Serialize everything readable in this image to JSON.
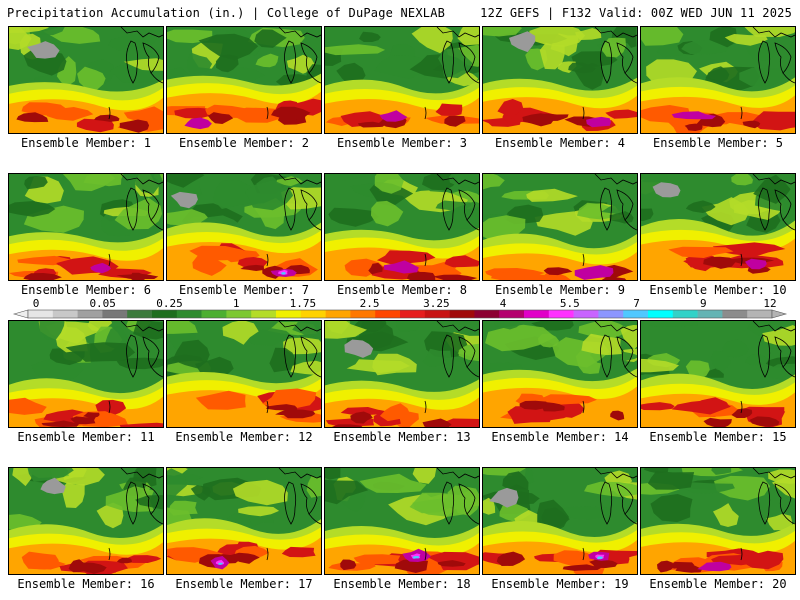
{
  "header": {
    "title_left": "Precipitation Accumulation (in.) | College of DuPage NEXLAB",
    "title_right": "12Z GEFS | F132 Valid: 00Z WED JUN 11 2025"
  },
  "members": [
    {
      "label": "Ensemble Member: 1",
      "seed": 1
    },
    {
      "label": "Ensemble Member: 2",
      "seed": 2
    },
    {
      "label": "Ensemble Member: 3",
      "seed": 3
    },
    {
      "label": "Ensemble Member: 4",
      "seed": 4
    },
    {
      "label": "Ensemble Member: 5",
      "seed": 5
    },
    {
      "label": "Ensemble Member: 6",
      "seed": 6
    },
    {
      "label": "Ensemble Member: 7",
      "seed": 7
    },
    {
      "label": "Ensemble Member: 8",
      "seed": 8
    },
    {
      "label": "Ensemble Member: 9",
      "seed": 9
    },
    {
      "label": "Ensemble Member: 10",
      "seed": 10
    },
    {
      "label": "Ensemble Member: 11",
      "seed": 11
    },
    {
      "label": "Ensemble Member: 12",
      "seed": 12
    },
    {
      "label": "Ensemble Member: 13",
      "seed": 13
    },
    {
      "label": "Ensemble Member: 14",
      "seed": 14
    },
    {
      "label": "Ensemble Member: 15",
      "seed": 15
    },
    {
      "label": "Ensemble Member: 16",
      "seed": 16
    },
    {
      "label": "Ensemble Member: 17",
      "seed": 17
    },
    {
      "label": "Ensemble Member: 18",
      "seed": 18
    },
    {
      "label": "Ensemble Member: 19",
      "seed": 19
    },
    {
      "label": "Ensemble Member: 20",
      "seed": 20
    }
  ],
  "legend": {
    "tick_labels": [
      "0",
      "0.05",
      "0.25",
      "1",
      "1.75",
      "2.5",
      "3.25",
      "4",
      "5.5",
      "7",
      "9",
      "12"
    ],
    "colors": [
      "#e6e6e6",
      "#c8c8c8",
      "#a0a0a0",
      "#787878",
      "#3c7a3c",
      "#1e6e1e",
      "#2e8b2e",
      "#4caf30",
      "#7cc832",
      "#b4dc28",
      "#f0f000",
      "#ffd200",
      "#ffa500",
      "#ff7800",
      "#ff4600",
      "#e61e1e",
      "#c81414",
      "#a00a0a",
      "#8c0032",
      "#b4006e",
      "#e100c8",
      "#ff32ff",
      "#c864ff",
      "#8c96ff",
      "#50c8ff",
      "#00ffff",
      "#32d2c8",
      "#64b4b4",
      "#8c8c8c",
      "#b4b4b4"
    ]
  },
  "map_palette": {
    "gray": "#9a9a9a",
    "dark_green": "#1e6e1e",
    "green": "#2e8b2e",
    "light_green": "#6cbf2c",
    "yellow_green": "#b4dc28",
    "yellow": "#f0f000",
    "orange": "#ffa500",
    "red_orange": "#ff5a00",
    "red": "#d21414",
    "dark_red": "#a00a0a",
    "magenta": "#c000a0",
    "pink": "#ff32ff",
    "cyan": "#50c8ff"
  }
}
